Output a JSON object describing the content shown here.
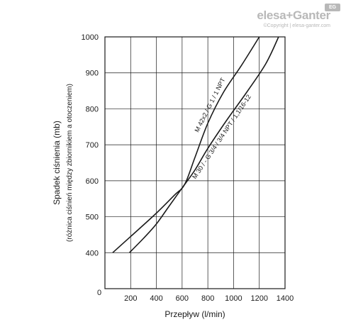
{
  "brand": {
    "name": "elesa+Ganter",
    "copyright": "©Copyright | elesa-ganter.com",
    "badge": "EG"
  },
  "chart_data": {
    "type": "line",
    "xlabel": "Przepływ (l/min)",
    "ylabel": "Spadek ciśnienia (mb)",
    "ylabel_sub": "(różnica ciśnień między zbiornikiem a otoczeniem)",
    "xlim": [
      0,
      1400
    ],
    "ylim": [
      300,
      1000
    ],
    "origin_label": "0",
    "x_ticks": [
      200,
      400,
      600,
      800,
      1000,
      1200,
      1400
    ],
    "y_ticks": [
      400,
      500,
      600,
      700,
      800,
      900,
      1000
    ],
    "grid": true,
    "legend": "inline labels along curves",
    "series": [
      {
        "name": "M 42x2 / G 1 / 1 NPT",
        "x": [
          60,
          200,
          400,
          540,
          620,
          700,
          800,
          920,
          1060,
          1200
        ],
        "y": [
          400,
          445,
          510,
          560,
          590,
          665,
          760,
          845,
          920,
          1000
        ]
      },
      {
        "name": "M 30 / - G 3/4 / 3/4 NPT / 1,1/16-12",
        "x": [
          190,
          300,
          400,
          500,
          600,
          700,
          800,
          950,
          1100,
          1250,
          1350
        ],
        "y": [
          400,
          440,
          480,
          530,
          580,
          630,
          690,
          770,
          845,
          925,
          1000
        ]
      }
    ]
  }
}
